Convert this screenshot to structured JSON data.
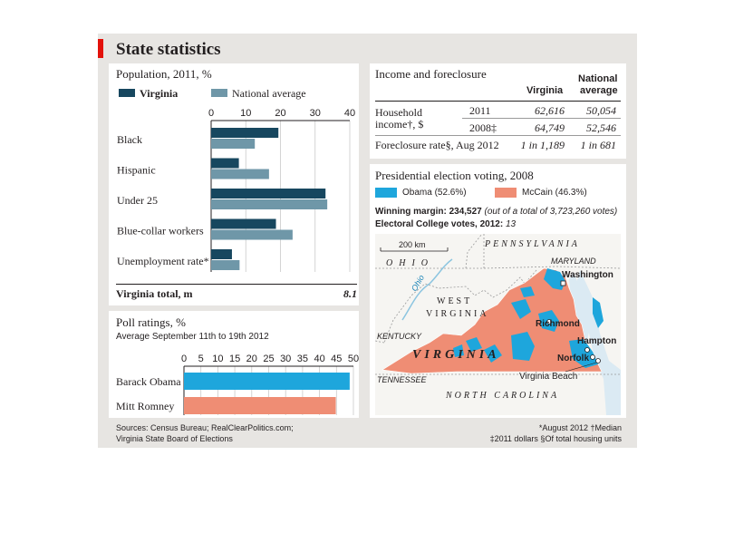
{
  "title": "State statistics",
  "population": {
    "title": "Population, 2011, %",
    "legend": {
      "virginia": "Virginia",
      "national": "National average"
    },
    "total_label": "Virginia total, m",
    "total_value": "8.1"
  },
  "poll": {
    "title": "Poll ratings, %",
    "subtitle": "Average September 11th to 19th 2012"
  },
  "income": {
    "title": "Income and foreclosure",
    "col_virginia": "Virginia",
    "col_national_1": "National",
    "col_national_2": "average",
    "household_1": "Household",
    "household_2": "income†, $",
    "year_2011": "2011",
    "year_2008": "2008‡",
    "va_2011": "62,616",
    "na_2011": "50,054",
    "va_2008": "64,749",
    "na_2008": "52,546",
    "foreclosure_label": "Foreclosure rate§, Aug 2012",
    "va_foreclosure": "1 in 1,189",
    "na_foreclosure": "1 in 681"
  },
  "election": {
    "title": "Presidential election voting, 2008",
    "obama_legend": "Obama (52.6%)",
    "mccain_legend": "McCain (46.3%)",
    "margin_prefix": "Winning margin: 234,527",
    "margin_suffix": "(out of a total of 3,723,260 votes)",
    "college_prefix": "Electoral College votes, 2012:",
    "college_value": "13"
  },
  "map": {
    "scale": "200 km",
    "labels": {
      "pennsylvania": "PENNSYLVANIA",
      "ohio": "OHIO",
      "maryland": "MARYLAND",
      "washington": "Washington",
      "west": "WEST",
      "virginia_wv": "VIRGINIA",
      "ohio_river": "Ohio",
      "kentucky": "KENTUCKY",
      "richmond": "Richmond",
      "hampton": "Hampton",
      "norfolk": "Norfolk",
      "virginia": "VIRGINIA",
      "virginia_beach": "Virginia Beach",
      "tennessee": "TENNESSEE",
      "north_carolina": "NORTH CAROLINA"
    }
  },
  "sources": {
    "line1": "Sources: Census Bureau; RealClearPolitics.com;",
    "line2": "Virginia State Board of Elections"
  },
  "notes": {
    "line1": "*August 2012   †Median",
    "line2": "‡2011 dollars   §Of total housing units"
  },
  "colors": {
    "virginia": "#17475f",
    "national": "#6f97a8",
    "obama": "#1ea6dc",
    "mccain": "#ef8d74",
    "accent": "#e3120b",
    "panel": "#e7e5e2"
  },
  "chart_data": [
    {
      "type": "bar",
      "title": "Population, 2011, %",
      "categories": [
        "Black",
        "Hispanic",
        "Under 25",
        "Blue-collar workers",
        "Unemployment rate*"
      ],
      "series": [
        {
          "name": "Virginia",
          "values": [
            19.4,
            8.0,
            33.0,
            18.7,
            6.0
          ]
        },
        {
          "name": "National average",
          "values": [
            12.6,
            16.7,
            33.5,
            23.5,
            8.2
          ]
        }
      ],
      "xticks": [
        0,
        10,
        20,
        30,
        40
      ],
      "xlim": [
        0,
        40
      ],
      "legend": "top"
    },
    {
      "type": "bar",
      "title": "Poll ratings, %",
      "categories": [
        "Barack Obama",
        "Mitt Romney"
      ],
      "values": [
        48.9,
        44.8
      ],
      "colors": [
        "#1ea6dc",
        "#ef8d74"
      ],
      "xticks": [
        0,
        5,
        10,
        15,
        20,
        25,
        30,
        35,
        40,
        45,
        50
      ],
      "xlim": [
        0,
        50
      ]
    }
  ]
}
